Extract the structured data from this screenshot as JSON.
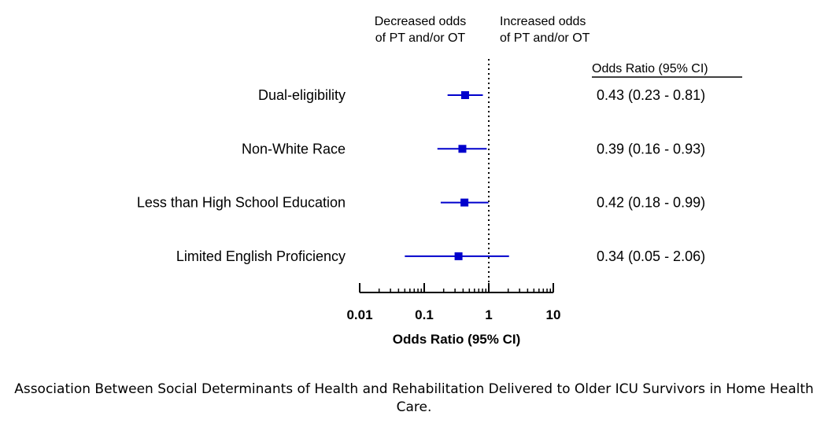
{
  "chart_data": {
    "type": "forest",
    "x_scale": "log",
    "xlim": [
      0.01,
      10
    ],
    "reference_value": 1,
    "xlabel": "Odds Ratio (95% CI)",
    "ticks": [
      {
        "value": 0.01,
        "label": "0.01"
      },
      {
        "value": 0.1,
        "label": "0.1"
      },
      {
        "value": 1,
        "label": "1"
      },
      {
        "value": 10,
        "label": "10"
      }
    ],
    "header_left": [
      "Decreased odds",
      "of PT and/or OT"
    ],
    "header_right": [
      "Increased odds",
      "of PT and/or OT"
    ],
    "table_header": "Odds Ratio (95% CI)",
    "rows": [
      {
        "label": "Dual-eligibility",
        "or": 0.43,
        "lo": 0.23,
        "hi": 0.81,
        "text": "0.43 (0.23 - 0.81)"
      },
      {
        "label": "Non-White Race",
        "or": 0.39,
        "lo": 0.16,
        "hi": 0.93,
        "text": "0.39 (0.16 - 0.93)"
      },
      {
        "label": "Less than High School Education",
        "or": 0.42,
        "lo": 0.18,
        "hi": 0.99,
        "text": "0.42 (0.18 - 0.99)"
      },
      {
        "label": "Limited English Proficiency",
        "or": 0.34,
        "lo": 0.05,
        "hi": 2.06,
        "text": "0.34 (0.05 - 2.06)"
      }
    ],
    "colors": {
      "marker": "#0000cc",
      "axis": "#000000"
    }
  },
  "caption": "Association Between Social Determinants of Health and Rehabilitation Delivered to Older ICU Survivors in Home Health Care."
}
